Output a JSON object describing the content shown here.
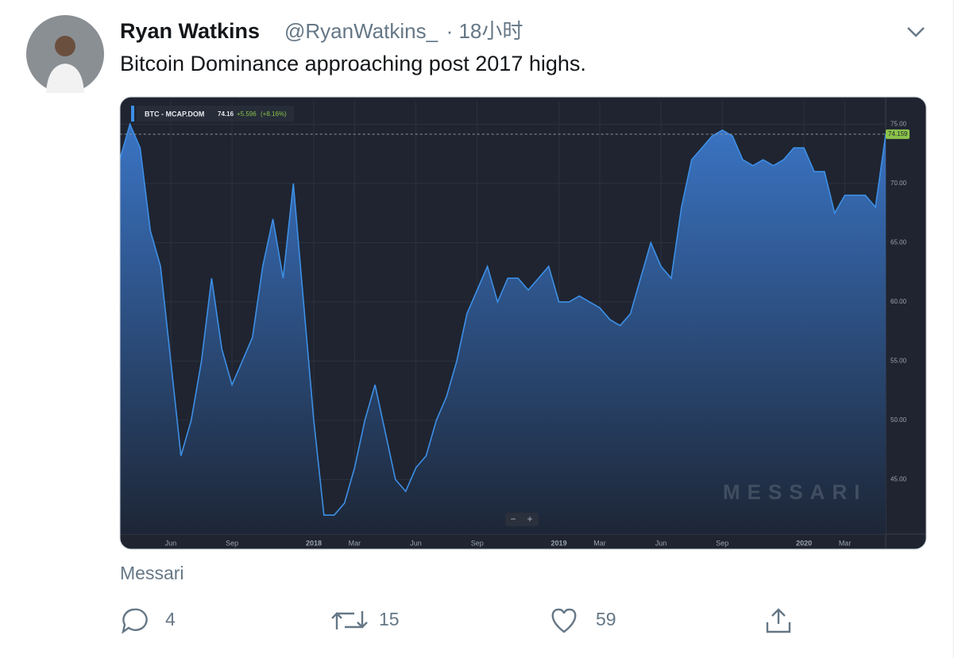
{
  "tweet": {
    "name": "Ryan Watkins",
    "handle": "@RyanWatkins_",
    "time": "· 18小时",
    "text": "Bitcoin Dominance approaching post 2017 highs.",
    "card_source": "Messari",
    "replies": 4,
    "retweets": 15,
    "likes": 59
  },
  "chart_data": {
    "type": "area",
    "title": "BTC - MCAP.DOM",
    "last_value": 74.16,
    "change": "+5.596",
    "change_pct": "(+8.16%)",
    "price_label": "74.159",
    "watermark": "MESSARI",
    "zoom_controls": [
      "−",
      "+"
    ],
    "categories": [
      null,
      null,
      null,
      null,
      null,
      "Jun",
      null,
      null,
      null,
      null,
      null,
      "Sep",
      null,
      null,
      null,
      null,
      null,
      null,
      null,
      "2018",
      null,
      null,
      null,
      "Mar",
      null,
      null,
      null,
      null,
      null,
      "Jun",
      null,
      null,
      null,
      null,
      null,
      "Sep",
      null,
      null,
      null,
      null,
      null,
      null,
      null,
      "2019",
      null,
      null,
      null,
      "Mar",
      null,
      null,
      null,
      null,
      null,
      "Jun",
      null,
      null,
      null,
      null,
      null,
      "Sep",
      null,
      null,
      null,
      null,
      null,
      null,
      null,
      "2020",
      null,
      null,
      null,
      "Mar",
      null,
      null,
      null,
      null
    ],
    "series": [
      {
        "name": "BTC - MCAP.DOM",
        "color": "#3d8fe6",
        "values": [
          72,
          75,
          73,
          66,
          63,
          55,
          47,
          50,
          55,
          62,
          56,
          53,
          55,
          57,
          63,
          67,
          62,
          70,
          60,
          50,
          42,
          42,
          43,
          46,
          50,
          53,
          49,
          45,
          44,
          46,
          47,
          50,
          52,
          55,
          59,
          61,
          63,
          60,
          62,
          62,
          61,
          62,
          63,
          60,
          60,
          60.5,
          60,
          59.5,
          58.5,
          58,
          59,
          62,
          65,
          63,
          62,
          68,
          72,
          73,
          74,
          74.5,
          74,
          72,
          71.5,
          72,
          71.5,
          72,
          73,
          73,
          71,
          71,
          67.5,
          69,
          69,
          69,
          68,
          74.16
        ]
      }
    ],
    "ylim": [
      40.4,
      76.9
    ],
    "yticks": [
      {
        "value": 45,
        "label": "45.00"
      },
      {
        "value": 50,
        "label": "50.00"
      },
      {
        "value": 55,
        "label": "55.00"
      },
      {
        "value": 60,
        "label": "60.00"
      },
      {
        "value": 65,
        "label": "65.00"
      },
      {
        "value": 70,
        "label": "70.00"
      },
      {
        "value": 75,
        "label": "75.00"
      }
    ],
    "grid": true
  }
}
